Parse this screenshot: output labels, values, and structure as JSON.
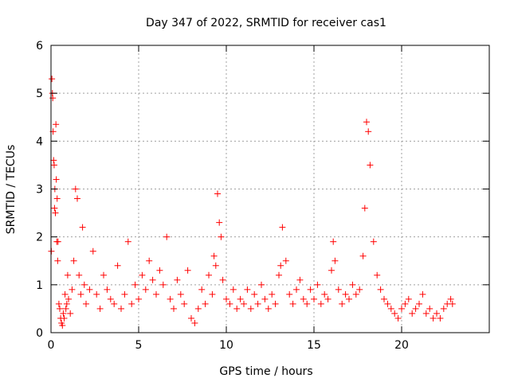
{
  "chart_data": {
    "type": "scatter",
    "title": "Day 347 of 2022, SRMTID for receiver cas1",
    "xlabel": "GPS time / hours",
    "ylabel": "SRMTID / TECUs",
    "xlim": [
      0,
      25
    ],
    "ylim": [
      0,
      6
    ],
    "xticks": [
      0,
      5,
      10,
      15,
      20
    ],
    "yticks": [
      0,
      1,
      2,
      3,
      4,
      5,
      6
    ],
    "xtick_labels": [
      "0",
      "5",
      "10",
      "15",
      "20"
    ],
    "ytick_labels": [
      "0",
      "1",
      "2",
      "3",
      "4",
      "5",
      "6"
    ],
    "grid": true,
    "marker": "+",
    "series": [
      {
        "name": "SRMTID",
        "color": "#ff0000",
        "x": [
          0.02,
          0.05,
          0.08,
          0.1,
          0.12,
          0.15,
          0.18,
          0.2,
          0.22,
          0.25,
          0.28,
          0.3,
          0.33,
          0.35,
          0.38,
          0.4,
          0.45,
          0.5,
          0.55,
          0.6,
          0.65,
          0.7,
          0.75,
          0.8,
          0.85,
          0.9,
          0.95,
          1.0,
          1.1,
          1.2,
          1.3,
          1.4,
          1.5,
          1.6,
          1.7,
          1.8,
          1.9,
          2.0,
          2.2,
          2.4,
          2.6,
          2.8,
          3.0,
          3.2,
          3.4,
          3.6,
          3.8,
          4.0,
          4.2,
          4.4,
          4.6,
          4.8,
          5.0,
          5.2,
          5.4,
          5.6,
          5.8,
          6.0,
          6.2,
          6.4,
          6.6,
          6.8,
          7.0,
          7.2,
          7.4,
          7.6,
          7.8,
          8.0,
          8.2,
          8.4,
          8.6,
          8.8,
          9.0,
          9.2,
          9.3,
          9.4,
          9.5,
          9.6,
          9.7,
          9.8,
          10.0,
          10.2,
          10.4,
          10.6,
          10.8,
          11.0,
          11.2,
          11.4,
          11.6,
          11.8,
          12.0,
          12.2,
          12.4,
          12.6,
          12.8,
          13.0,
          13.1,
          13.2,
          13.4,
          13.6,
          13.8,
          14.0,
          14.2,
          14.4,
          14.6,
          14.8,
          15.0,
          15.2,
          15.4,
          15.6,
          15.8,
          16.0,
          16.1,
          16.2,
          16.4,
          16.6,
          16.8,
          17.0,
          17.2,
          17.4,
          17.6,
          17.8,
          17.9,
          18.0,
          18.1,
          18.2,
          18.4,
          18.6,
          18.8,
          19.0,
          19.2,
          19.4,
          19.6,
          19.8,
          20.0,
          20.2,
          20.4,
          20.6,
          20.8,
          21.0,
          21.2,
          21.4,
          21.6,
          21.8,
          22.0,
          22.2,
          22.4,
          22.6,
          22.8,
          22.9
        ],
        "y": [
          1.7,
          5.3,
          5.0,
          4.9,
          4.2,
          3.6,
          3.5,
          2.6,
          3.0,
          2.5,
          4.35,
          3.2,
          1.9,
          2.8,
          1.5,
          1.9,
          0.6,
          0.5,
          0.3,
          0.2,
          0.15,
          0.4,
          0.3,
          0.8,
          0.5,
          0.6,
          1.2,
          0.7,
          0.4,
          0.9,
          1.5,
          3.0,
          2.8,
          1.2,
          0.8,
          2.2,
          1.0,
          0.6,
          0.9,
          1.7,
          0.8,
          0.5,
          1.2,
          0.9,
          0.7,
          0.6,
          1.4,
          0.5,
          0.8,
          1.9,
          0.6,
          1.0,
          0.7,
          1.2,
          0.9,
          1.5,
          1.1,
          0.8,
          1.3,
          1.0,
          2.0,
          0.7,
          0.5,
          1.1,
          0.8,
          0.6,
          1.3,
          0.3,
          0.2,
          0.5,
          0.9,
          0.6,
          1.2,
          0.8,
          1.6,
          1.4,
          2.9,
          2.3,
          2.0,
          1.1,
          0.7,
          0.6,
          0.9,
          0.5,
          0.7,
          0.6,
          0.9,
          0.5,
          0.8,
          0.6,
          1.0,
          0.7,
          0.5,
          0.8,
          0.6,
          1.2,
          1.4,
          2.2,
          1.5,
          0.8,
          0.6,
          0.9,
          1.1,
          0.7,
          0.6,
          0.9,
          0.7,
          1.0,
          0.6,
          0.8,
          0.7,
          1.3,
          1.9,
          1.5,
          0.9,
          0.6,
          0.8,
          0.7,
          1.0,
          0.8,
          0.9,
          1.6,
          2.6,
          4.4,
          4.2,
          3.5,
          1.9,
          1.2,
          0.9,
          0.7,
          0.6,
          0.5,
          0.4,
          0.3,
          0.5,
          0.6,
          0.7,
          0.4,
          0.5,
          0.6,
          0.8,
          0.4,
          0.5,
          0.3,
          0.4,
          0.3,
          0.5,
          0.6,
          0.7,
          0.6
        ]
      }
    ]
  }
}
